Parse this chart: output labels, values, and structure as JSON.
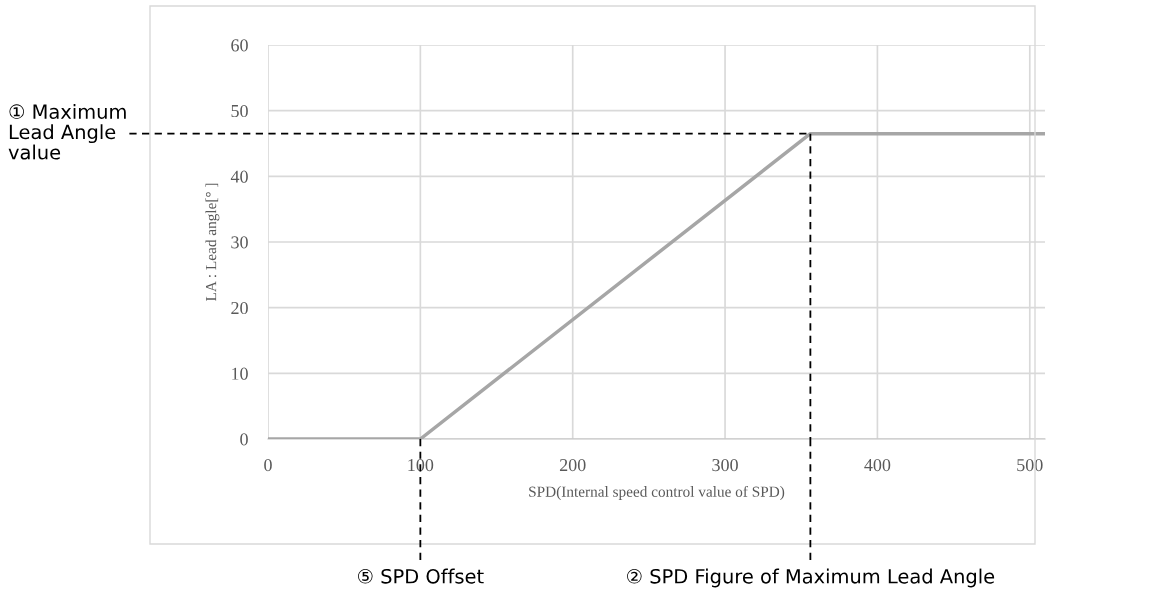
{
  "chart_data": {
    "type": "line",
    "xlabel": "SPD(Internal speed control value of SPD)",
    "ylabel": "LA : Lead angle[° ]",
    "x": [
      0,
      100,
      356,
      510
    ],
    "series": [
      {
        "color": "#a6a6a6",
        "values": [
          0,
          0,
          46.5,
          46.5
        ]
      }
    ],
    "xlim": [
      0,
      510
    ],
    "xticks": [
      0,
      100,
      200,
      300,
      400,
      500
    ],
    "ylim": [
      0,
      60
    ],
    "yticks": [
      0,
      10,
      20,
      30,
      40,
      50,
      60
    ],
    "grid": true,
    "marker": "none",
    "line_style": "solid",
    "ref_lines": [
      {
        "axis": "y",
        "value": 46.5,
        "label": "① Maximum\nLead Angle\nvalue",
        "color": "#000000",
        "line_style": "dashed"
      },
      {
        "axis": "x",
        "value": 100,
        "label": "⑤ SPD Offset",
        "color": "#000000",
        "line_style": "dashed"
      },
      {
        "axis": "x",
        "value": 356,
        "label": "② SPD Figure of Maximum Lead Angle",
        "color": "#000000",
        "line_style": "dashed"
      }
    ]
  }
}
